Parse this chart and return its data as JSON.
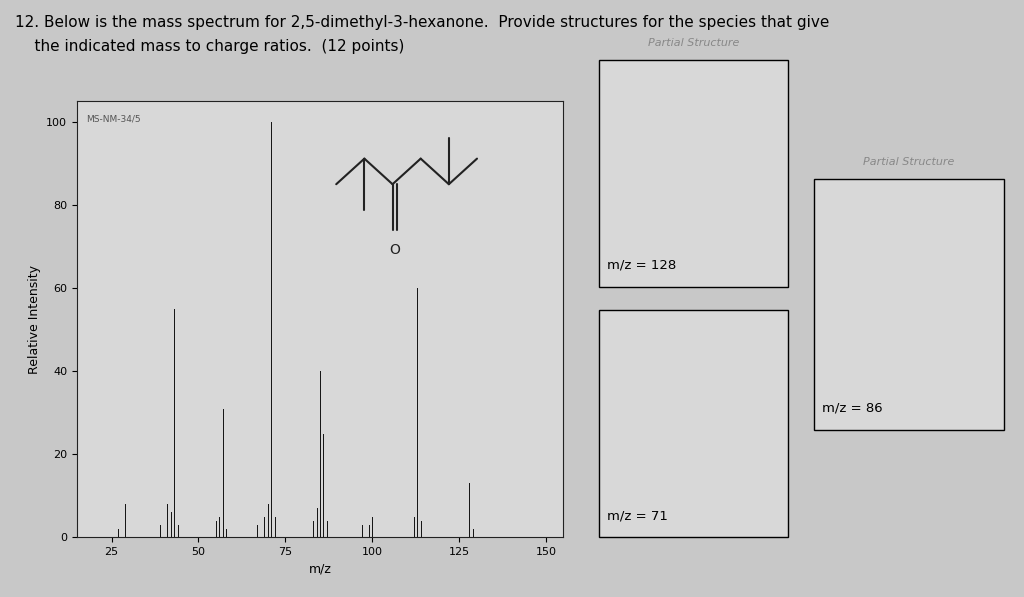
{
  "title_line1": "12. Below is the mass spectrum for 2,5-dimethyl-3-hexanone.  Provide structures for the species that give",
  "title_line2": "    the indicated mass to charge ratios.  (12 points)",
  "xlabel": "m/z",
  "ylabel": "Relative Intensity",
  "xlim": [
    15,
    155
  ],
  "ylim": [
    0,
    105
  ],
  "xticks": [
    25,
    50,
    75,
    100,
    125,
    150
  ],
  "yticks": [
    0,
    20,
    40,
    60,
    80,
    100
  ],
  "background_color": "#c8c8c8",
  "plot_bg_color": "#d8d8d8",
  "peaks": [
    [
      15,
      1
    ],
    [
      27,
      2
    ],
    [
      29,
      8
    ],
    [
      39,
      3
    ],
    [
      41,
      8
    ],
    [
      42,
      6
    ],
    [
      43,
      55
    ],
    [
      44,
      3
    ],
    [
      55,
      4
    ],
    [
      56,
      5
    ],
    [
      57,
      31
    ],
    [
      58,
      2
    ],
    [
      67,
      3
    ],
    [
      69,
      5
    ],
    [
      70,
      8
    ],
    [
      71,
      100
    ],
    [
      72,
      5
    ],
    [
      83,
      4
    ],
    [
      84,
      7
    ],
    [
      85,
      40
    ],
    [
      86,
      25
    ],
    [
      87,
      4
    ],
    [
      97,
      3
    ],
    [
      99,
      3
    ],
    [
      100,
      5
    ],
    [
      112,
      5
    ],
    [
      113,
      60
    ],
    [
      114,
      4
    ],
    [
      128,
      13
    ],
    [
      129,
      2
    ]
  ],
  "label_text": "MS-NM-34/5",
  "title_fontsize": 11,
  "axis_fontsize": 9,
  "tick_fontsize": 8,
  "bar_color": "#111111",
  "line_color": "#222222",
  "box1_label": "m/z = 128",
  "box2_label": "m/z = 71",
  "box3_label": "m/z = 86",
  "partial_label1": "Partial Structure",
  "partial_label2": "Partial Structure"
}
